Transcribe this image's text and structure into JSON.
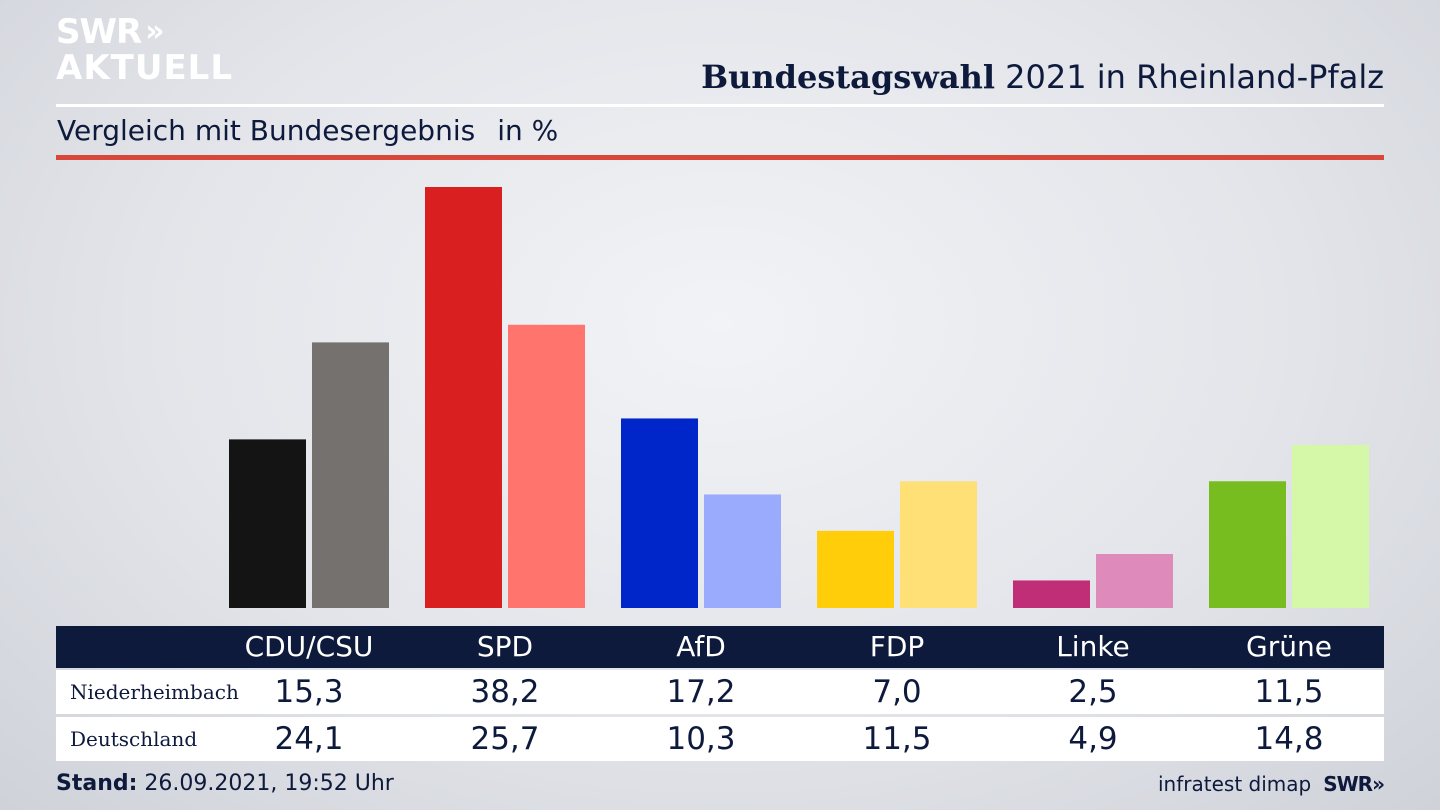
{
  "logo": {
    "line1": "SWR",
    "arrows": "»",
    "line2": "AKTUELL"
  },
  "header": {
    "title_bold": "Bundestagswahl",
    "title_rest": " 2021 in Rheinland-Pfalz"
  },
  "subtitle": {
    "text": "Vergleich mit Bundesergebnis",
    "unit": "in %"
  },
  "table": {
    "rows": [
      {
        "label": "Niederheimbach",
        "values": [
          "15,3",
          "38,2",
          "17,2",
          "7,0",
          "2,5",
          "11,5"
        ]
      },
      {
        "label": "Deutschland",
        "values": [
          "24,1",
          "25,7",
          "10,3",
          "11,5",
          "4,9",
          "14,8"
        ]
      }
    ]
  },
  "footer": {
    "stand_label": "Stand:",
    "stand_value": " 26.09.2021, 19:52 Uhr",
    "source": "infratest dimap",
    "brand": "SWR»"
  },
  "chart_data": {
    "type": "bar",
    "categories": [
      "CDU/CSU",
      "SPD",
      "AfD",
      "FDP",
      "Linke",
      "Grüne"
    ],
    "series": [
      {
        "name": "Niederheimbach",
        "values": [
          15.3,
          38.2,
          17.2,
          7.0,
          2.5,
          11.5
        ]
      },
      {
        "name": "Deutschland",
        "values": [
          24.1,
          25.7,
          10.3,
          11.5,
          4.9,
          14.8
        ]
      }
    ],
    "colors": {
      "Niederheimbach": [
        "#141414",
        "#d91f1f",
        "#0026c9",
        "#ffcd0a",
        "#bf2e77",
        "#78bd20"
      ],
      "Deutschland": [
        "#74716e",
        "#ff756e",
        "#9aaafd",
        "#ffe076",
        "#de8bbb",
        "#d5f7a8"
      ]
    },
    "title": "Bundestagswahl 2021 in Rheinland-Pfalz",
    "subtitle": "Vergleich mit Bundesergebnis",
    "ylabel": "in %",
    "ylim": [
      0,
      38.2
    ],
    "grid": false,
    "legend": "none"
  }
}
